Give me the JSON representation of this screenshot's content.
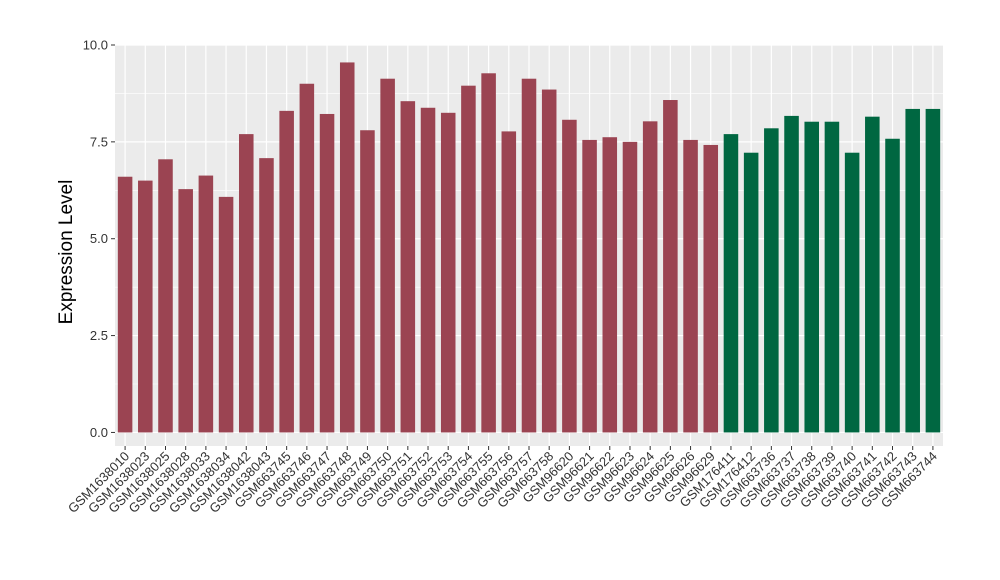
{
  "chart_data": {
    "type": "bar",
    "title": "",
    "xlabel": "",
    "ylabel": "Expression Level",
    "ylim": [
      -0.35,
      10.0
    ],
    "yticks": [
      0.0,
      2.5,
      5.0,
      7.5,
      10.0
    ],
    "ytick_labels": [
      "0.0",
      "2.5",
      "5.0",
      "7.5",
      "10.0"
    ],
    "grid": true,
    "legend": "none",
    "colors": {
      "group1": "#9b4452",
      "group2": "#006741",
      "panel": "#ebebeb",
      "grid": "#ffffff"
    },
    "categories": [
      "GSM1638010",
      "GSM1638023",
      "GSM1638025",
      "GSM1638028",
      "GSM1638033",
      "GSM1638034",
      "GSM1638042",
      "GSM1638043",
      "GSM663745",
      "GSM663746",
      "GSM663747",
      "GSM663748",
      "GSM663749",
      "GSM663750",
      "GSM663751",
      "GSM663752",
      "GSM663753",
      "GSM663754",
      "GSM663755",
      "GSM663756",
      "GSM663757",
      "GSM663758",
      "GSM96620",
      "GSM96621",
      "GSM96622",
      "GSM96623",
      "GSM96624",
      "GSM96625",
      "GSM96626",
      "GSM96629",
      "GSM176411",
      "GSM176412",
      "GSM663736",
      "GSM663737",
      "GSM663738",
      "GSM663739",
      "GSM663740",
      "GSM663741",
      "GSM663742",
      "GSM663743",
      "GSM663744"
    ],
    "values": [
      6.6,
      6.5,
      7.05,
      6.28,
      6.63,
      6.08,
      7.7,
      7.08,
      8.3,
      9.0,
      8.22,
      9.55,
      7.8,
      9.13,
      8.55,
      8.38,
      8.25,
      8.95,
      9.27,
      7.77,
      9.13,
      8.85,
      8.07,
      7.55,
      7.62,
      7.5,
      8.03,
      8.58,
      7.55,
      7.42,
      7.7,
      7.22,
      7.85,
      8.17,
      8.02,
      8.02,
      7.22,
      8.15,
      7.58,
      8.35,
      8.35
    ],
    "groups": [
      1,
      1,
      1,
      1,
      1,
      1,
      1,
      1,
      1,
      1,
      1,
      1,
      1,
      1,
      1,
      1,
      1,
      1,
      1,
      1,
      1,
      1,
      1,
      1,
      1,
      1,
      1,
      1,
      1,
      1,
      2,
      2,
      2,
      2,
      2,
      2,
      2,
      2,
      2,
      2,
      2
    ]
  }
}
